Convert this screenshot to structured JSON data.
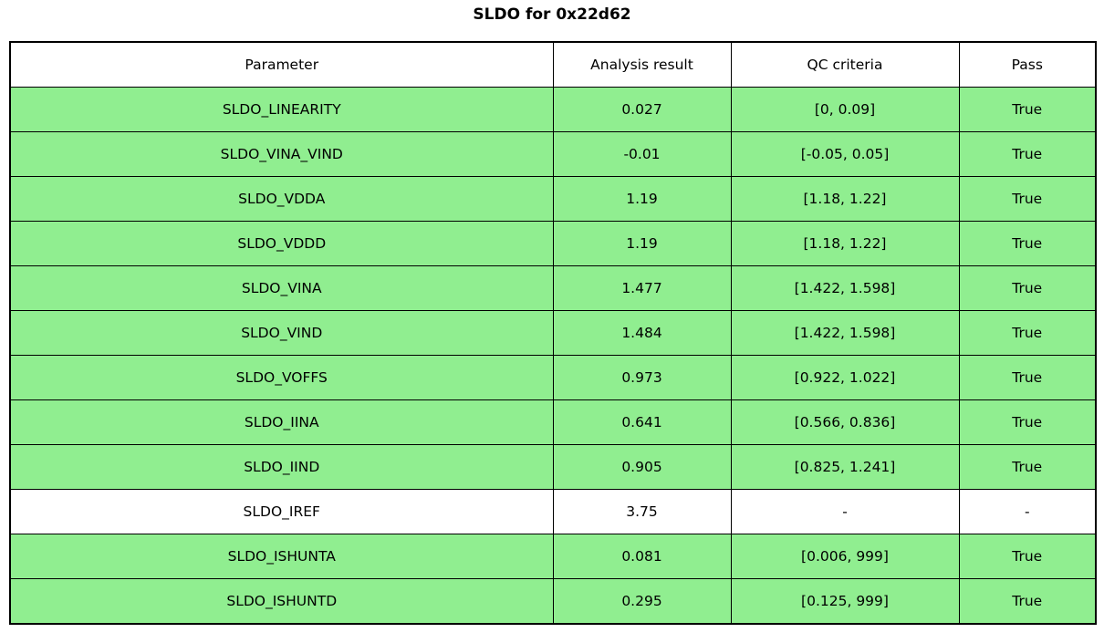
{
  "title": "SLDO for 0x22d62",
  "colors": {
    "pass_row_green": "#90EE90",
    "neutral_row_white": "#FFFFFF",
    "border_black": "#000000"
  },
  "table": {
    "columns": [
      "Parameter",
      "Analysis result",
      "QC criteria",
      "Pass"
    ],
    "rows": [
      {
        "parameter": "SLDO_LINEARITY",
        "result": "0.027",
        "criteria": "[0, 0.09]",
        "pass": "True",
        "highlight": true
      },
      {
        "parameter": "SLDO_VINA_VIND",
        "result": "-0.01",
        "criteria": "[-0.05, 0.05]",
        "pass": "True",
        "highlight": true
      },
      {
        "parameter": "SLDO_VDDA",
        "result": "1.19",
        "criteria": "[1.18, 1.22]",
        "pass": "True",
        "highlight": true
      },
      {
        "parameter": "SLDO_VDDD",
        "result": "1.19",
        "criteria": "[1.18, 1.22]",
        "pass": "True",
        "highlight": true
      },
      {
        "parameter": "SLDO_VINA",
        "result": "1.477",
        "criteria": "[1.422, 1.598]",
        "pass": "True",
        "highlight": true
      },
      {
        "parameter": "SLDO_VIND",
        "result": "1.484",
        "criteria": "[1.422, 1.598]",
        "pass": "True",
        "highlight": true
      },
      {
        "parameter": "SLDO_VOFFS",
        "result": "0.973",
        "criteria": "[0.922, 1.022]",
        "pass": "True",
        "highlight": true
      },
      {
        "parameter": "SLDO_IINA",
        "result": "0.641",
        "criteria": "[0.566, 0.836]",
        "pass": "True",
        "highlight": true
      },
      {
        "parameter": "SLDO_IIND",
        "result": "0.905",
        "criteria": "[0.825, 1.241]",
        "pass": "True",
        "highlight": true
      },
      {
        "parameter": "SLDO_IREF",
        "result": "3.75",
        "criteria": "-",
        "pass": "-",
        "highlight": false
      },
      {
        "parameter": "SLDO_ISHUNTA",
        "result": "0.081",
        "criteria": "[0.006, 999]",
        "pass": "True",
        "highlight": true
      },
      {
        "parameter": "SLDO_ISHUNTD",
        "result": "0.295",
        "criteria": "[0.125, 999]",
        "pass": "True",
        "highlight": true
      }
    ]
  }
}
